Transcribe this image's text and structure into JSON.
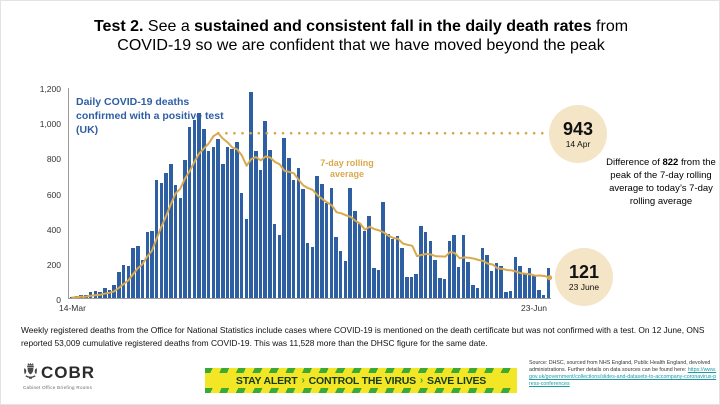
{
  "title": {
    "part1": "Test 2.",
    "part2": " See a ",
    "part3": "sustained and consistent fall in the daily death rates",
    "part4": " from COVID-19 so we are confident that we have moved beyond the peak"
  },
  "chart_data": {
    "type": "bar",
    "title": "Daily COVID-19 deaths confirmed with a positive test (UK)",
    "x_start": "14-Mar",
    "x_end": "23-Jun",
    "frequency": "daily",
    "ylim": [
      0,
      1200
    ],
    "yticks": [
      "0",
      "200",
      "400",
      "600",
      "800",
      "1,000",
      "1,200"
    ],
    "bar_color": "#2e5fa3",
    "line_color": "#d9a94e",
    "series": [
      {
        "name": "Daily deaths",
        "values": [
          8,
          12,
          19,
          16,
          33,
          40,
          36,
          56,
          48,
          74,
          149,
          186,
          183,
          284,
          294,
          214,
          374,
          382,
          670,
          652,
          714,
          760,
          644,
          568,
          786,
          975,
          1010,
          1052,
          960,
          839,
          860,
          905,
          761,
          861,
          847,
          888,
          596,
          449,
          1172,
          837,
          727,
          1005,
          843,
          420,
          360,
          909,
          795,
          674,
          739,
          621,
          315,
          288,
          693,
          649,
          539,
          626,
          346,
          269,
          210,
          627,
          494,
          428,
          384,
          468,
          170,
          160,
          545,
          363,
          338,
          351,
          282,
          118,
          121,
          134,
          412,
          377,
          324,
          215,
          113,
          111,
          324,
          359,
          176,
          357,
          204,
          77,
          55,
          286,
          245,
          151,
          202,
          181,
          36,
          38,
          233,
          184,
          135,
          173,
          128,
          43,
          15,
          171
        ]
      },
      {
        "name": "7-day rolling average",
        "derived": "trailing 7-day mean of daily deaths"
      }
    ],
    "annotations": {
      "peak": {
        "value": "943",
        "date": "14 Apr",
        "level": 943
      },
      "latest": {
        "value": "121",
        "date": "23 June",
        "level": 121
      }
    }
  },
  "difference_note": {
    "prefix": "Difference of ",
    "bold": "822",
    "suffix": " from the peak of the 7-day rolling average to today’s 7-day rolling average"
  },
  "footnote": "Weekly registered deaths from the Office for National Statistics include cases where COVID-19 is mentioned on the death certificate but was not confirmed with a test. On 12 June, ONS reported 53,009 cumulative registered deaths from COVID-19. This was 11,528 more than the DHSC figure for the same date.",
  "logo": {
    "name": "COBR",
    "subtitle": "Cabinet Office Briefing Rooms"
  },
  "banner": {
    "segments": [
      "STAY ALERT",
      "CONTROL THE VIRUS",
      "SAVE LIVES"
    ],
    "separator": "›",
    "bg": "#f2e626",
    "stripe": "#3aa935"
  },
  "source": {
    "prefix": "Source: DHSC, sourced from NHS England, Public Health England, devolved administrations. Further details on data sources can be found here: ",
    "link": "https://www.gov.uk/government/collections/slides-and-datasets-to-accompany-coronavirus-press-conferences"
  },
  "colors": {
    "bar": "#2e5fa3",
    "gold": "#d9a94e",
    "badge_bg": "#f4e5c7"
  }
}
